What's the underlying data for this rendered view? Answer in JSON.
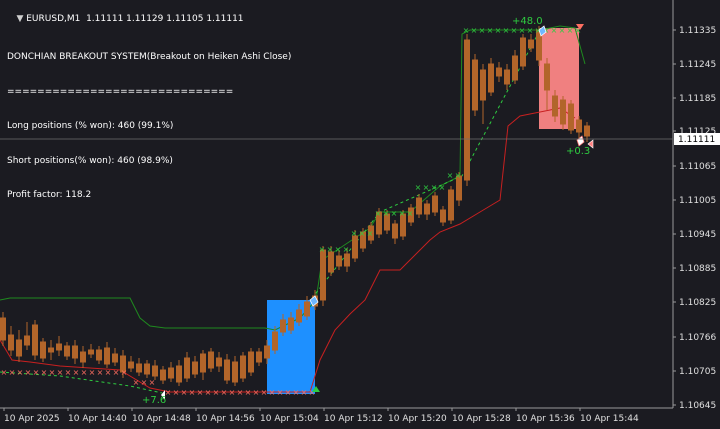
{
  "header": {
    "symbol_line": "EURUSD,M1  1.11111 1.11129 1.11105 1.11111",
    "collapse_icon": "triangle-down-icon"
  },
  "info_panel": {
    "lines": [
      "DONCHIAN BREAKOUT SYSTEM(Breakout on Heiken Ashi Close)",
      "==============================",
      "Long positions (% won): 460 (99.1%)",
      "Short positions(% won): 460 (98.9%)",
      "Profit factor: 118.2"
    ]
  },
  "price_axis": {
    "labels": [
      "1.11335",
      "1.11245",
      "1.11185",
      "1.11125",
      "1.11065",
      "1.11005",
      "1.10945",
      "1.10885",
      "1.10825",
      "1.10766",
      "1.10705",
      "1.10645"
    ],
    "current_price": "1.11111"
  },
  "time_axis": {
    "labels": [
      "10 Apr 2025",
      "10 Apr 14:40",
      "10 Apr 14:48",
      "10 Apr 14:56",
      "10 Apr 15:04",
      "10 Apr 15:12",
      "10 Apr 15:20",
      "10 Apr 15:28",
      "10 Apr 15:36",
      "10 Apr 15:44"
    ]
  },
  "annotations": {
    "profit_long": "+7.6",
    "profit_top": "+48.0",
    "profit_short": "+0.3"
  },
  "colors": {
    "background": "#1b1b21",
    "candle_up": "#f0a35a",
    "candle_down": "#b2652a",
    "upper_channel": "#1f8a1f",
    "lower_channel": "#c82020",
    "long_zone": "#1e90ff",
    "short_zone": "#f08080",
    "cross_green": "#2ecc40",
    "cross_red": "#ff6f61"
  }
}
